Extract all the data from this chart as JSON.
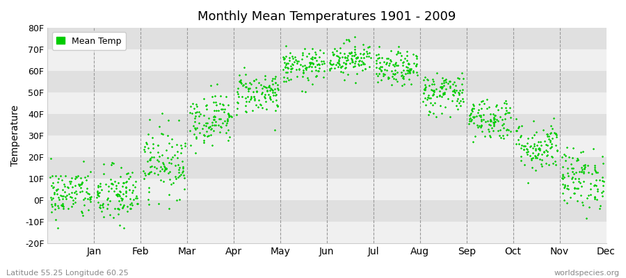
{
  "title": "Monthly Mean Temperatures 1901 - 2009",
  "ylabel": "Temperature",
  "bottom_left_text": "Latitude 55.25 Longitude 60.25",
  "bottom_right_text": "worldspecies.org",
  "legend_label": "Mean Temp",
  "dot_color": "#00cc00",
  "background_color": "#ffffff",
  "plot_bg_light": "#f0f0f0",
  "plot_bg_dark": "#e0e0e0",
  "ylim": [
    -20,
    80
  ],
  "yticks": [
    -20,
    -10,
    0,
    10,
    20,
    30,
    40,
    50,
    60,
    70,
    80
  ],
  "ytick_labels": [
    "-20F",
    "-10F",
    "0F",
    "10F",
    "20F",
    "30F",
    "40F",
    "50F",
    "60F",
    "70F",
    "80F"
  ],
  "months": [
    "Jan",
    "Feb",
    "Mar",
    "Apr",
    "May",
    "Jun",
    "Jul",
    "Aug",
    "Sep",
    "Oct",
    "Nov",
    "Dec"
  ],
  "month_means_F": [
    3,
    2,
    18,
    38,
    50,
    62,
    66,
    61,
    50,
    38,
    25,
    10
  ],
  "month_stds_F": [
    6,
    7,
    8,
    6,
    5,
    4,
    4,
    4,
    5,
    5,
    6,
    7
  ],
  "n_years": 109,
  "random_seed": 42
}
